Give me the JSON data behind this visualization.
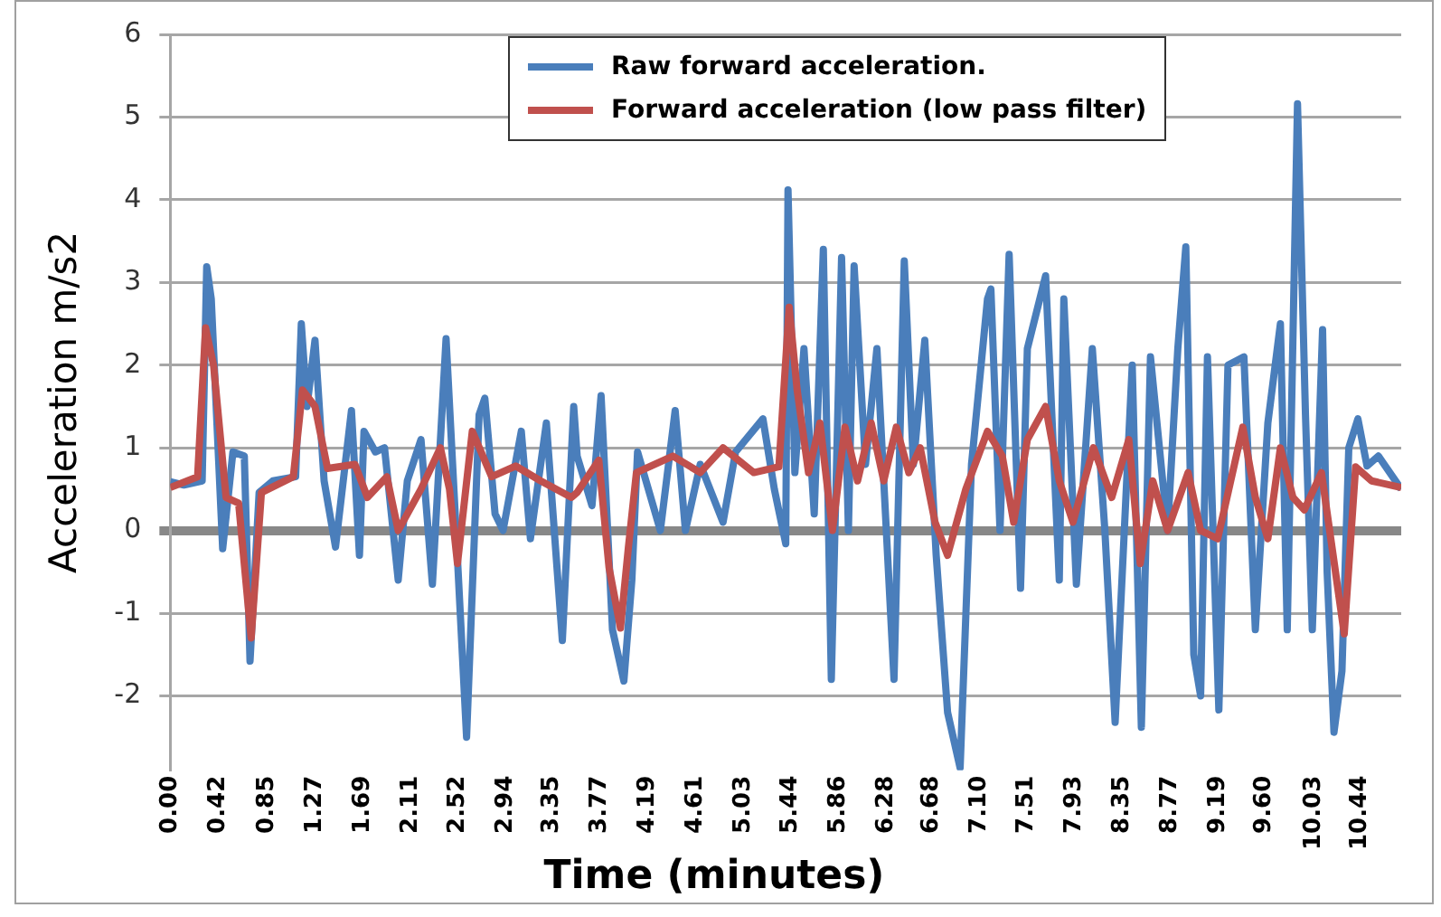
{
  "chart_data": {
    "type": "line",
    "xlabel": "Time (minutes)",
    "ylabel": "Acceleration m/s2",
    "xlim": [
      0,
      10.8
    ],
    "ylim": [
      -2.9,
      6
    ],
    "yticks": [
      -2,
      -1,
      0,
      1,
      2,
      3,
      4,
      5,
      6
    ],
    "xticks": [
      {
        "value": 0,
        "label": "0.00"
      },
      0.42,
      0.85,
      1.27,
      1.69,
      2.11,
      2.52,
      2.94,
      3.35,
      3.77,
      4.19,
      4.61,
      5.03,
      5.44,
      5.86,
      6.28,
      6.68,
      {
        "value": 7.1,
        "label": "7.10"
      },
      7.51,
      7.93,
      8.35,
      8.77,
      9.19,
      {
        "value": 9.6,
        "label": "9.60"
      },
      10.03,
      10.44
    ],
    "grid": "y",
    "legend": "top",
    "marker": "none",
    "line_style": "solid",
    "series": [
      {
        "name": "Raw forward acceleration.",
        "color": "#4a7ebb",
        "x": [
          0,
          0.12,
          0.28,
          0.32,
          0.36,
          0.46,
          0.55,
          0.65,
          0.7,
          0.78,
          0.9,
          1.1,
          1.15,
          1.2,
          1.27,
          1.35,
          1.45,
          1.59,
          1.66,
          1.7,
          1.8,
          1.88,
          2.0,
          2.08,
          2.2,
          2.3,
          2.42,
          2.5,
          2.6,
          2.71,
          2.76,
          2.85,
          2.92,
          3.08,
          3.16,
          3.3,
          3.44,
          3.54,
          3.57,
          3.7,
          3.78,
          3.88,
          3.98,
          4.05,
          4.1,
          4.3,
          4.43,
          4.52,
          4.65,
          4.85,
          4.96,
          5.2,
          5.3,
          5.4,
          5.42,
          5.48,
          5.56,
          5.65,
          5.73,
          5.8,
          5.89,
          5.95,
          6.0,
          6.1,
          6.2,
          6.35,
          6.44,
          6.52,
          6.62,
          6.72,
          6.82,
          6.93,
          7.03,
          7.17,
          7.2,
          7.28,
          7.36,
          7.46,
          7.52,
          7.68,
          7.8,
          7.84,
          7.95,
          8.09,
          8.2,
          8.29,
          8.44,
          8.52,
          8.6,
          8.75,
          8.84,
          8.91,
          8.98,
          9.04,
          9.1,
          9.2,
          9.28,
          9.42,
          9.52,
          9.63,
          9.74,
          9.8,
          9.89,
          9.96,
          10.02,
          10.11,
          10.15,
          10.21,
          10.28,
          10.34,
          10.42,
          10.5,
          10.6,
          10.8
        ],
        "values": [
          0.59,
          0.55,
          0.6,
          3.19,
          2.8,
          -0.22,
          0.95,
          0.9,
          -1.58,
          0.46,
          0.6,
          0.65,
          2.5,
          1.5,
          2.3,
          0.6,
          -0.2,
          1.45,
          -0.3,
          1.2,
          0.95,
          1.0,
          -0.6,
          0.6,
          1.1,
          -0.65,
          2.32,
          0.2,
          -2.5,
          1.4,
          1.6,
          0.2,
          0.0,
          1.2,
          -0.1,
          1.3,
          -1.33,
          1.5,
          0.9,
          0.3,
          1.63,
          -1.2,
          -1.82,
          -0.6,
          0.95,
          0.0,
          1.45,
          0.0,
          0.8,
          0.1,
          0.95,
          1.35,
          0.5,
          -0.16,
          4.12,
          0.7,
          2.2,
          0.2,
          3.4,
          -1.8,
          3.3,
          0.0,
          3.2,
          0.8,
          2.2,
          -1.8,
          3.26,
          0.8,
          2.3,
          -0.3,
          -2.2,
          -2.87,
          0.8,
          2.8,
          2.92,
          0.0,
          3.34,
          -0.7,
          2.2,
          3.08,
          -0.6,
          2.8,
          -0.65,
          2.2,
          0.0,
          -2.32,
          2.0,
          -2.38,
          2.1,
          0.0,
          2.2,
          3.43,
          -1.5,
          -2.0,
          2.1,
          -2.17,
          2.0,
          2.1,
          -1.2,
          1.3,
          2.5,
          -1.2,
          5.16,
          1.4,
          -1.2,
          2.43,
          -0.5,
          -2.44,
          -1.7,
          1.0,
          1.35,
          0.78,
          0.9,
          0.5
        ]
      },
      {
        "name": "Forward acceleration (low pass filter)",
        "color": "#c0504d",
        "x": [
          0,
          0.24,
          0.31,
          0.38,
          0.49,
          0.6,
          0.71,
          0.8,
          1.08,
          1.16,
          1.27,
          1.38,
          1.62,
          1.73,
          1.9,
          2.0,
          2.2,
          2.37,
          2.45,
          2.52,
          2.65,
          2.82,
          3.03,
          3.25,
          3.52,
          3.57,
          3.76,
          3.85,
          3.95,
          4.02,
          4.09,
          4.41,
          4.65,
          4.85,
          5.12,
          5.34,
          5.43,
          5.5,
          5.6,
          5.7,
          5.81,
          5.92,
          6.03,
          6.15,
          6.26,
          6.37,
          6.48,
          6.58,
          6.71,
          6.82,
          6.98,
          7.17,
          7.3,
          7.4,
          7.52,
          7.68,
          7.8,
          7.92,
          8.1,
          8.26,
          8.41,
          8.51,
          8.62,
          8.75,
          8.93,
          9.04,
          9.19,
          9.41,
          9.52,
          9.63,
          9.74,
          9.85,
          9.95,
          10.1,
          10.3,
          10.4,
          10.54,
          10.8
        ],
        "values": [
          0.52,
          0.65,
          2.45,
          2.0,
          0.4,
          0.33,
          -1.3,
          0.46,
          0.65,
          1.7,
          1.5,
          0.75,
          0.8,
          0.4,
          0.65,
          0.0,
          0.5,
          1.0,
          0.5,
          -0.4,
          1.2,
          0.65,
          0.78,
          0.6,
          0.4,
          0.46,
          0.85,
          -0.45,
          -1.18,
          -0.2,
          0.7,
          0.9,
          0.7,
          1.0,
          0.7,
          0.77,
          2.7,
          1.7,
          0.7,
          1.3,
          0.0,
          1.25,
          0.6,
          1.3,
          0.6,
          1.25,
          0.7,
          1.0,
          0.1,
          -0.3,
          0.5,
          1.2,
          0.9,
          0.1,
          1.1,
          1.5,
          0.6,
          0.1,
          1.0,
          0.4,
          1.1,
          -0.4,
          0.6,
          0.0,
          0.7,
          0.0,
          -0.1,
          1.25,
          0.4,
          -0.1,
          1.0,
          0.4,
          0.25,
          0.7,
          -1.25,
          0.77,
          0.6,
          0.52
        ]
      }
    ]
  }
}
